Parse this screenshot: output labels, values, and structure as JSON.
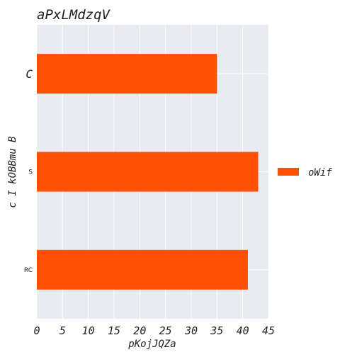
{
  "chart_data": {
    "type": "bar",
    "orientation": "horizontal",
    "title": "aPxLMdzqV",
    "xlabel": "pKojJQZa",
    "ylabel": "c I kOBBmu B",
    "categories": [
      "C",
      "S",
      "RC"
    ],
    "series": [
      {
        "name": "oWif",
        "values": [
          35,
          43,
          41
        ]
      }
    ],
    "xlim": [
      0,
      45
    ],
    "xticks": [
      0,
      5,
      10,
      15,
      20,
      25,
      30,
      35,
      40,
      45
    ],
    "grid": true,
    "legend": "right",
    "colors": {
      "bar": "#ff4f00",
      "plot_background": "#e9eaf2",
      "grid": "#ffffff",
      "text": "#222222"
    }
  }
}
